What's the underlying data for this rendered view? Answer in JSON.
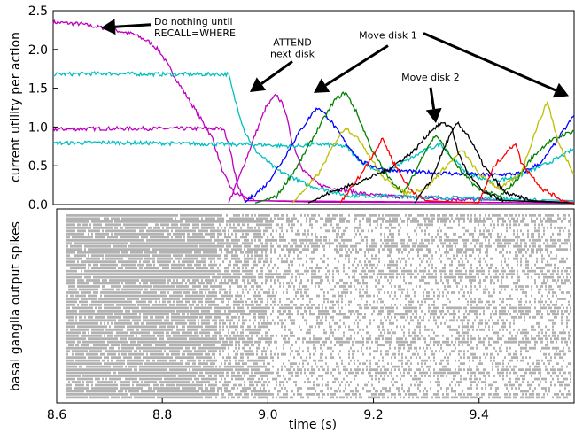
{
  "chart_data": [
    {
      "type": "line",
      "ylabel": "current utility per action",
      "xlim": [
        8.6,
        9.58
      ],
      "ylim": [
        0.0,
        2.5
      ],
      "yticks": [
        0.0,
        0.5,
        1.0,
        1.5,
        2.0,
        2.5
      ],
      "ytick_labels": [
        "0.0",
        "0.5",
        "1.0",
        "1.5",
        "2.0",
        "2.5"
      ],
      "series": [
        {
          "color": "#bf00bf",
          "points": [
            [
              8.6,
              2.35
            ],
            [
              8.65,
              2.33
            ],
            [
              8.7,
              2.27
            ],
            [
              8.75,
              2.2
            ],
            [
              8.78,
              2.1
            ],
            [
              8.8,
              1.98
            ],
            [
              8.82,
              1.75
            ],
            [
              8.84,
              1.52
            ],
            [
              8.86,
              1.3
            ],
            [
              8.88,
              1.08
            ],
            [
              8.9,
              0.85
            ],
            [
              8.92,
              0.4
            ],
            [
              8.94,
              0.15
            ],
            [
              8.98,
              0.05
            ],
            [
              9.1,
              0.03
            ],
            [
              9.58,
              0.02
            ]
          ]
        },
        {
          "color": "#bf00bf",
          "points": [
            [
              8.6,
              0.97
            ],
            [
              8.7,
              0.98
            ],
            [
              8.8,
              0.98
            ],
            [
              8.92,
              0.98
            ],
            [
              8.93,
              0.8
            ],
            [
              8.945,
              0.3
            ],
            [
              8.96,
              0.05
            ],
            [
              9.58,
              0.02
            ]
          ]
        },
        {
          "color": "#bf00bf",
          "points": [
            [
              8.93,
              0.02
            ],
            [
              8.95,
              0.35
            ],
            [
              8.98,
              0.9
            ],
            [
              9.0,
              1.25
            ],
            [
              9.02,
              1.42
            ],
            [
              9.035,
              1.25
            ],
            [
              9.05,
              0.8
            ],
            [
              9.07,
              0.45
            ],
            [
              9.1,
              0.25
            ],
            [
              9.2,
              0.12
            ],
            [
              9.35,
              0.07
            ],
            [
              9.58,
              0.03
            ]
          ]
        },
        {
          "color": "#00bfbf",
          "points": [
            [
              8.6,
              1.68
            ],
            [
              8.7,
              1.69
            ],
            [
              8.8,
              1.68
            ],
            [
              8.93,
              1.68
            ],
            [
              8.94,
              1.4
            ],
            [
              8.96,
              0.95
            ],
            [
              8.98,
              0.7
            ],
            [
              9.02,
              0.45
            ],
            [
              9.08,
              0.25
            ],
            [
              9.15,
              0.12
            ],
            [
              9.58,
              0.05
            ]
          ]
        },
        {
          "color": "#00bfbf",
          "points": [
            [
              8.6,
              0.79
            ],
            [
              8.7,
              0.8
            ],
            [
              8.8,
              0.79
            ],
            [
              8.9,
              0.78
            ],
            [
              9.0,
              0.77
            ],
            [
              9.05,
              0.75
            ],
            [
              9.1,
              0.78
            ],
            [
              9.15,
              0.75
            ],
            [
              9.18,
              0.55
            ],
            [
              9.22,
              0.4
            ],
            [
              9.26,
              0.55
            ],
            [
              9.3,
              0.7
            ],
            [
              9.33,
              0.78
            ],
            [
              9.35,
              0.6
            ],
            [
              9.38,
              0.4
            ],
            [
              9.42,
              0.3
            ],
            [
              9.47,
              0.35
            ],
            [
              9.52,
              0.5
            ],
            [
              9.55,
              0.6
            ],
            [
              9.58,
              0.72
            ]
          ]
        },
        {
          "color": "#0000ff",
          "points": [
            [
              8.96,
              0.02
            ],
            [
              9.0,
              0.25
            ],
            [
              9.03,
              0.55
            ],
            [
              9.06,
              0.9
            ],
            [
              9.09,
              1.2
            ],
            [
              9.1,
              1.25
            ],
            [
              9.12,
              1.1
            ],
            [
              9.15,
              0.8
            ],
            [
              9.18,
              0.55
            ],
            [
              9.22,
              0.45
            ],
            [
              9.28,
              0.42
            ],
            [
              9.35,
              0.4
            ],
            [
              9.42,
              0.38
            ],
            [
              9.48,
              0.4
            ],
            [
              9.52,
              0.55
            ],
            [
              9.55,
              0.85
            ],
            [
              9.58,
              1.15
            ]
          ]
        },
        {
          "color": "#008000",
          "points": [
            [
              8.98,
              0.02
            ],
            [
              9.02,
              0.1
            ],
            [
              9.06,
              0.5
            ],
            [
              9.1,
              1.0
            ],
            [
              9.13,
              1.35
            ],
            [
              9.15,
              1.45
            ],
            [
              9.17,
              1.2
            ],
            [
              9.2,
              0.7
            ],
            [
              9.23,
              0.35
            ],
            [
              9.26,
              0.15
            ],
            [
              9.28,
              0.4
            ],
            [
              9.3,
              0.7
            ],
            [
              9.32,
              0.9
            ],
            [
              9.34,
              0.7
            ],
            [
              9.37,
              0.4
            ],
            [
              9.4,
              0.2
            ],
            [
              9.44,
              0.1
            ],
            [
              9.47,
              0.3
            ],
            [
              9.5,
              0.6
            ],
            [
              9.53,
              0.8
            ],
            [
              9.56,
              0.9
            ],
            [
              9.58,
              0.95
            ]
          ]
        },
        {
          "color": "#bfbf00",
          "points": [
            [
              9.05,
              0.02
            ],
            [
              9.1,
              0.4
            ],
            [
              9.13,
              0.8
            ],
            [
              9.15,
              1.0
            ],
            [
              9.18,
              0.8
            ],
            [
              9.22,
              0.35
            ],
            [
              9.26,
              0.15
            ],
            [
              9.3,
              0.2
            ],
            [
              9.34,
              0.5
            ],
            [
              9.37,
              0.7
            ],
            [
              9.4,
              0.4
            ],
            [
              9.44,
              0.2
            ],
            [
              9.48,
              0.4
            ],
            [
              9.51,
              1.0
            ],
            [
              9.53,
              1.33
            ],
            [
              9.55,
              0.8
            ],
            [
              9.58,
              0.4
            ]
          ]
        },
        {
          "color": "#000000",
          "points": [
            [
              9.08,
              0.02
            ],
            [
              9.12,
              0.15
            ],
            [
              9.18,
              0.3
            ],
            [
              9.23,
              0.45
            ],
            [
              9.28,
              0.7
            ],
            [
              9.31,
              0.95
            ],
            [
              9.33,
              1.05
            ],
            [
              9.35,
              1.0
            ],
            [
              9.36,
              0.7
            ],
            [
              9.38,
              0.4
            ],
            [
              9.41,
              0.15
            ],
            [
              9.45,
              0.05
            ],
            [
              9.58,
              0.02
            ]
          ]
        },
        {
          "color": "#000000",
          "points": [
            [
              9.28,
              0.02
            ],
            [
              9.31,
              0.3
            ],
            [
              9.34,
              0.8
            ],
            [
              9.36,
              1.05
            ],
            [
              9.38,
              0.9
            ],
            [
              9.41,
              0.5
            ],
            [
              9.45,
              0.15
            ],
            [
              9.5,
              0.05
            ],
            [
              9.58,
              0.02
            ]
          ]
        },
        {
          "color": "#ff0000",
          "points": [
            [
              9.14,
              0.02
            ],
            [
              9.18,
              0.4
            ],
            [
              9.22,
              0.85
            ],
            [
              9.24,
              0.55
            ],
            [
              9.27,
              0.2
            ],
            [
              9.3,
              0.05
            ],
            [
              9.4,
              0.02
            ],
            [
              9.43,
              0.5
            ],
            [
              9.47,
              0.8
            ],
            [
              9.48,
              0.55
            ],
            [
              9.52,
              0.2
            ],
            [
              9.56,
              0.05
            ],
            [
              9.58,
              0.02
            ]
          ]
        }
      ],
      "annotations": [
        {
          "lines": [
            "Do nothing until",
            "RECALL=WHERE"
          ],
          "tip": [
            8.69,
            2.28
          ],
          "text_at": [
            8.79,
            2.32
          ]
        },
        {
          "lines": [
            "ATTEND",
            "next disk"
          ],
          "tip": [
            8.97,
            1.45
          ],
          "text_at": [
            9.05,
            2.05
          ]
        },
        {
          "lines": [
            "Move disk 1"
          ],
          "tip": [
            9.09,
            1.44
          ],
          "text_at": [
            9.23,
            2.14
          ]
        },
        {
          "lines": [
            "Move disk 1"
          ],
          "tip": [
            9.57,
            1.4
          ],
          "text_at": [
            9.23,
            2.14
          ],
          "hidden_text": true
        },
        {
          "lines": [
            "Move disk 2"
          ],
          "tip": [
            9.32,
            1.05
          ],
          "text_at": [
            9.31,
            1.6
          ]
        }
      ]
    },
    {
      "type": "raster",
      "ylabel": "basal ganglia output spikes",
      "xlabel": "time (s)",
      "xlim": [
        8.6,
        9.58
      ],
      "xticks": [
        8.6,
        8.8,
        9.0,
        9.2,
        9.4
      ],
      "xtick_labels": [
        "8.6",
        "8.8",
        "9.0",
        "9.2",
        "9.4"
      ],
      "rows": 60,
      "dense_rows": [
        0,
        1,
        2,
        8,
        9,
        10,
        11,
        18,
        19,
        20,
        30,
        31,
        32,
        40,
        41,
        50,
        51,
        58,
        59
      ]
    }
  ]
}
